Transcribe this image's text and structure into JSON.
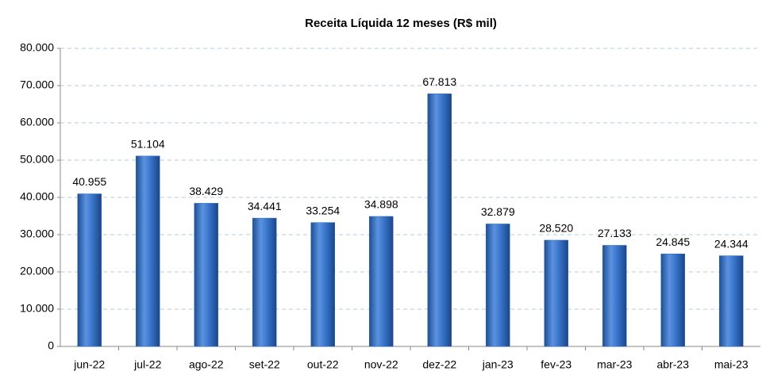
{
  "chart_data": {
    "type": "bar",
    "title": "Receita Líquida 12 meses (R$ mil)",
    "categories": [
      "jun-22",
      "jul-22",
      "ago-22",
      "set-22",
      "out-22",
      "nov-22",
      "dez-22",
      "jan-23",
      "fev-23",
      "mar-23",
      "abr-23",
      "mai-23"
    ],
    "values": [
      40955,
      51104,
      38429,
      34441,
      33254,
      34898,
      67813,
      32879,
      28520,
      27133,
      24845,
      24344
    ],
    "value_labels": [
      "40.955",
      "51.104",
      "38.429",
      "34.441",
      "33.254",
      "34.898",
      "67.813",
      "32.879",
      "28.520",
      "27.133",
      "24.845",
      "24.344"
    ],
    "color": "#2f6bc0",
    "ylim": [
      0,
      80000
    ],
    "yticks": [
      0,
      {
        "value": 10000,
        "label": "10.000"
      },
      {
        "value": 20000,
        "label": "20.000"
      },
      {
        "value": 30000,
        "label": "30.000"
      },
      {
        "value": 40000,
        "label": "40.000"
      },
      {
        "value": 50000,
        "label": "50.000"
      },
      {
        "value": 60000,
        "label": "60.000"
      },
      {
        "value": 70000,
        "label": "70.000"
      },
      {
        "value": 80000,
        "label": "80.000"
      }
    ],
    "grid": true
  }
}
